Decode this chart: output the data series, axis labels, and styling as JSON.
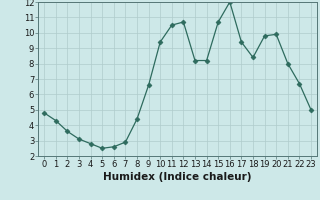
{
  "x": [
    0,
    1,
    2,
    3,
    4,
    5,
    6,
    7,
    8,
    9,
    10,
    11,
    12,
    13,
    14,
    15,
    16,
    17,
    18,
    19,
    20,
    21,
    22,
    23
  ],
  "y": [
    4.8,
    4.3,
    3.6,
    3.1,
    2.8,
    2.5,
    2.6,
    2.9,
    4.4,
    6.6,
    9.4,
    10.5,
    10.7,
    8.2,
    8.2,
    10.7,
    12.0,
    9.4,
    8.4,
    9.8,
    9.9,
    8.0,
    6.7,
    5.0
  ],
  "line_color": "#2e6b5e",
  "marker": "D",
  "marker_size": 2.5,
  "bg_color": "#cde8e8",
  "grid_color": "#b0cccc",
  "xlabel": "Humidex (Indice chaleur)",
  "ylim": [
    2,
    12
  ],
  "xlim": [
    -0.5,
    23.5
  ],
  "yticks": [
    2,
    3,
    4,
    5,
    6,
    7,
    8,
    9,
    10,
    11,
    12
  ],
  "xticks": [
    0,
    1,
    2,
    3,
    4,
    5,
    6,
    7,
    8,
    9,
    10,
    11,
    12,
    13,
    14,
    15,
    16,
    17,
    18,
    19,
    20,
    21,
    22,
    23
  ],
  "tick_fontsize": 6,
  "xlabel_fontsize": 7.5
}
